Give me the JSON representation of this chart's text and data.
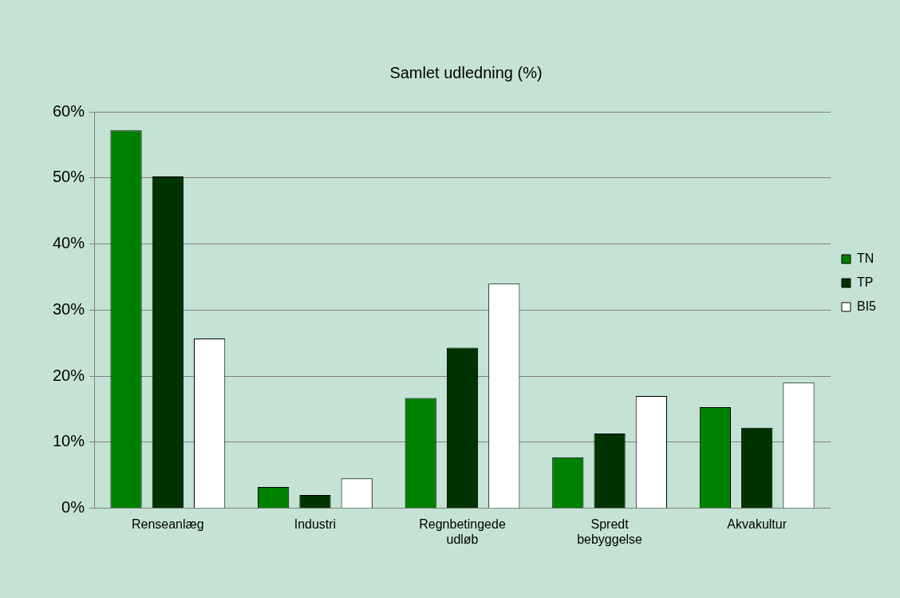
{
  "chart_data": {
    "type": "bar",
    "title": "Samlet udledning (%)",
    "categories": [
      "Renseanlæg",
      "Industri",
      "Regnbetingede udløb",
      "Spredt bebyggelse",
      "Akvakultur"
    ],
    "series": [
      {
        "name": "TN",
        "color": "#008000",
        "values": [
          57.2,
          3.2,
          16.7,
          7.7,
          15.3
        ]
      },
      {
        "name": "TP",
        "color": "#003300",
        "values": [
          50.2,
          2.0,
          24.3,
          11.3,
          12.2
        ]
      },
      {
        "name": "BI5",
        "color": "#ffffff",
        "values": [
          25.7,
          4.5,
          34.0,
          17.0,
          19.0
        ]
      }
    ],
    "ylim": [
      0,
      60
    ],
    "yticks": [
      {
        "value": 0,
        "label": "0%"
      },
      {
        "value": 10,
        "label": "10%"
      },
      {
        "value": 20,
        "label": "20%"
      },
      {
        "value": 30,
        "label": "30%"
      },
      {
        "value": 40,
        "label": "40%"
      },
      {
        "value": 50,
        "label": "50%"
      },
      {
        "value": 60,
        "label": "60%"
      }
    ],
    "grid": "y",
    "legend": "right"
  }
}
